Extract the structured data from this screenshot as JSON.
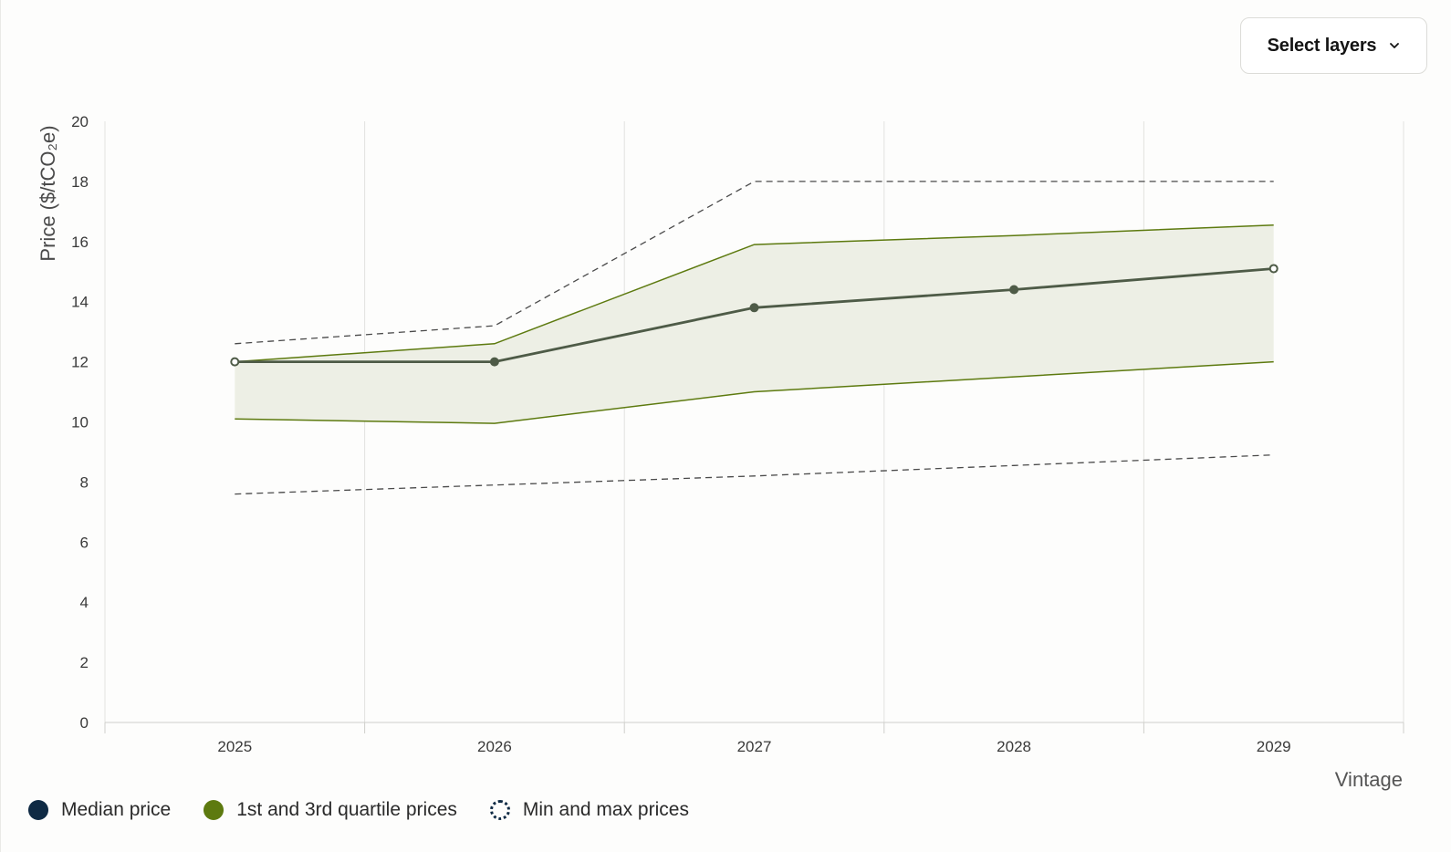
{
  "controls": {
    "select_layers_label": "Select layers",
    "chevron_icon": "chevron-down-icon"
  },
  "legend": {
    "median_label": "Median price",
    "quartile_label": "1st and 3rd quartile prices",
    "minmax_label": "Min and max prices"
  },
  "colors": {
    "median_line": "#4e5b47",
    "quartile_line": "#5d7a0f",
    "quartile_fill": "#edefe5",
    "minmax_line": "#4a4a4a",
    "grid": "#e2e2df",
    "legend_median": "#0f2a44",
    "legend_quartile": "#5d7a0f"
  },
  "chart_data": {
    "type": "line",
    "ylabel": "Price ($/tCO₂e)",
    "xlabel": "Vintage",
    "ylim": [
      0,
      20
    ],
    "yticks": [
      0,
      2,
      4,
      6,
      8,
      10,
      12,
      14,
      16,
      18,
      20
    ],
    "x": [
      "2025",
      "2026",
      "2027",
      "2028",
      "2029"
    ],
    "series": [
      {
        "name": "Median price",
        "values": [
          12.0,
          12.0,
          13.8,
          14.4,
          15.1
        ]
      },
      {
        "name": "1st and 3rd quartile prices",
        "lower": [
          10.1,
          9.95,
          11.0,
          11.5,
          12.0
        ],
        "upper": [
          12.0,
          12.6,
          15.9,
          16.2,
          16.55
        ]
      },
      {
        "name": "Min and max prices",
        "lower": [
          7.6,
          7.9,
          8.2,
          8.55,
          8.9
        ],
        "upper": [
          12.6,
          13.2,
          18.0,
          18.0,
          18.0
        ]
      }
    ],
    "grid": "vertical",
    "legend_position": "bottom-left"
  }
}
